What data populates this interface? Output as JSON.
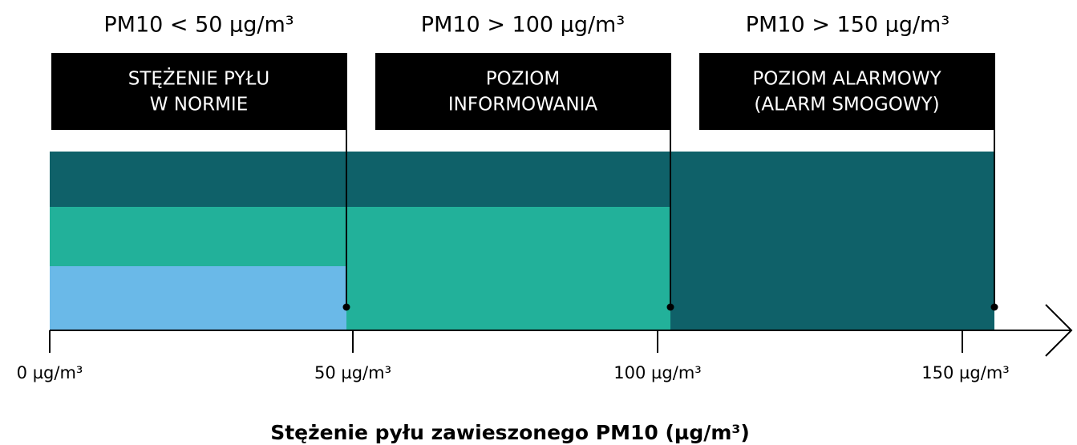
{
  "levels": [
    {
      "threshold": "PM10 < 50 µg/m³",
      "label_lines": [
        "STĘŻENIE PYŁU",
        "W NORMIE"
      ]
    },
    {
      "threshold": "PM10 > 100 µg/m³",
      "label_lines": [
        "POZIOM",
        "INFORMOWANIA"
      ]
    },
    {
      "threshold": "PM10 > 150 µg/m³",
      "label_lines": [
        "POZIOM ALARMOWY",
        "(ALARM SMOGOWY)"
      ]
    }
  ],
  "axis": {
    "ticks": [
      "0 µg/m³",
      "50 µg/m³",
      "100 µg/m³",
      "150 µg/m³"
    ],
    "title": "Stężenie pyłu zawieszonego PM10 (µg/m³)"
  }
}
